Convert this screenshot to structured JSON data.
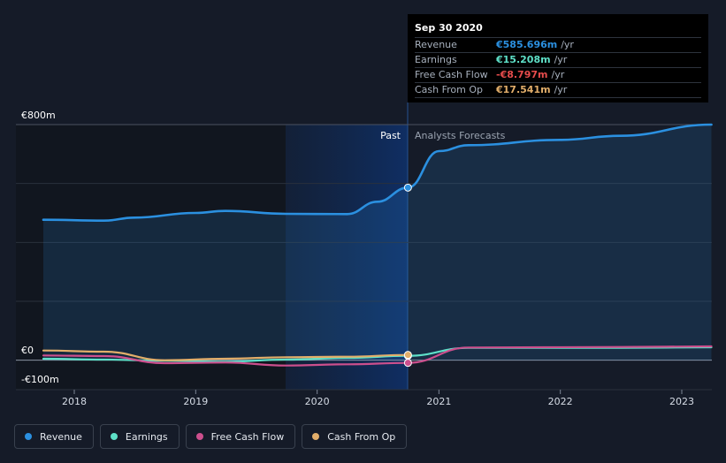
{
  "chart_data": {
    "type": "line",
    "y_axis_labels": {
      "top": "€800m",
      "zero": "€0",
      "bottom": "-€100m"
    },
    "x_tick_labels": [
      "2018",
      "2019",
      "2020",
      "2021",
      "2022",
      "2023"
    ],
    "ylim": [
      -100,
      800
    ],
    "grid": true,
    "zones": {
      "past_label": "Past",
      "forecast_label": "Analysts Forecasts",
      "split_date": "2020-09-30"
    },
    "series": [
      {
        "name": "Revenue",
        "color": "#2b90e0",
        "fill": true,
        "points": [
          [
            "2017-09-30",
            477
          ],
          [
            "2018-03-31",
            474
          ],
          [
            "2018-06-30",
            484
          ],
          [
            "2018-12-31",
            500
          ],
          [
            "2019-03-31",
            507
          ],
          [
            "2019-09-30",
            497
          ],
          [
            "2020-03-31",
            496
          ],
          [
            "2020-06-30",
            538
          ],
          [
            "2020-09-30",
            586
          ],
          [
            "2021-01-01",
            710
          ],
          [
            "2021-03-31",
            730
          ],
          [
            "2021-12-31",
            748
          ],
          [
            "2022-06-30",
            762
          ],
          [
            "2023-03-31",
            800
          ]
        ]
      },
      {
        "name": "Earnings",
        "color": "#5ee0c8",
        "fill": false,
        "points": [
          [
            "2017-09-30",
            5
          ],
          [
            "2018-03-31",
            2
          ],
          [
            "2018-09-30",
            -2
          ],
          [
            "2019-03-31",
            -5
          ],
          [
            "2019-09-30",
            2
          ],
          [
            "2020-03-31",
            8
          ],
          [
            "2020-09-30",
            15
          ],
          [
            "2021-03-31",
            42
          ],
          [
            "2022-06-30",
            42
          ],
          [
            "2023-03-31",
            44
          ]
        ]
      },
      {
        "name": "Free Cash Flow",
        "color": "#cc4f8d",
        "fill": false,
        "points": [
          [
            "2017-09-30",
            16
          ],
          [
            "2018-03-31",
            14
          ],
          [
            "2018-09-30",
            -10
          ],
          [
            "2019-03-31",
            -8
          ],
          [
            "2019-09-30",
            -18
          ],
          [
            "2020-03-31",
            -14
          ],
          [
            "2020-09-30",
            -9
          ],
          [
            "2021-03-31",
            43
          ],
          [
            "2022-06-30",
            45
          ],
          [
            "2023-03-31",
            47
          ]
        ]
      },
      {
        "name": "Cash From Op",
        "color": "#e2ae6a",
        "fill": false,
        "points": [
          [
            "2017-09-30",
            33
          ],
          [
            "2018-03-31",
            29
          ],
          [
            "2018-09-30",
            0
          ],
          [
            "2019-03-31",
            5
          ],
          [
            "2019-09-30",
            10
          ],
          [
            "2020-03-31",
            12
          ],
          [
            "2020-09-30",
            18
          ]
        ]
      }
    ]
  },
  "tooltip": {
    "date": "Sep 30 2020",
    "rows": [
      {
        "name": "Revenue",
        "value": "€585.696m",
        "unit": "/yr",
        "color": "#2b90e0"
      },
      {
        "name": "Earnings",
        "value": "€15.208m",
        "unit": "/yr",
        "color": "#5ee0c8"
      },
      {
        "name": "Free Cash Flow",
        "value": "-€8.797m",
        "unit": "/yr",
        "color": "#e64c4c"
      },
      {
        "name": "Cash From Op",
        "value": "€17.541m",
        "unit": "/yr",
        "color": "#e2ae6a"
      }
    ]
  },
  "legend": [
    {
      "label": "Revenue",
      "color": "#2b90e0"
    },
    {
      "label": "Earnings",
      "color": "#5ee0c8"
    },
    {
      "label": "Free Cash Flow",
      "color": "#cc4f8d"
    },
    {
      "label": "Cash From Op",
      "color": "#e2ae6a"
    }
  ]
}
